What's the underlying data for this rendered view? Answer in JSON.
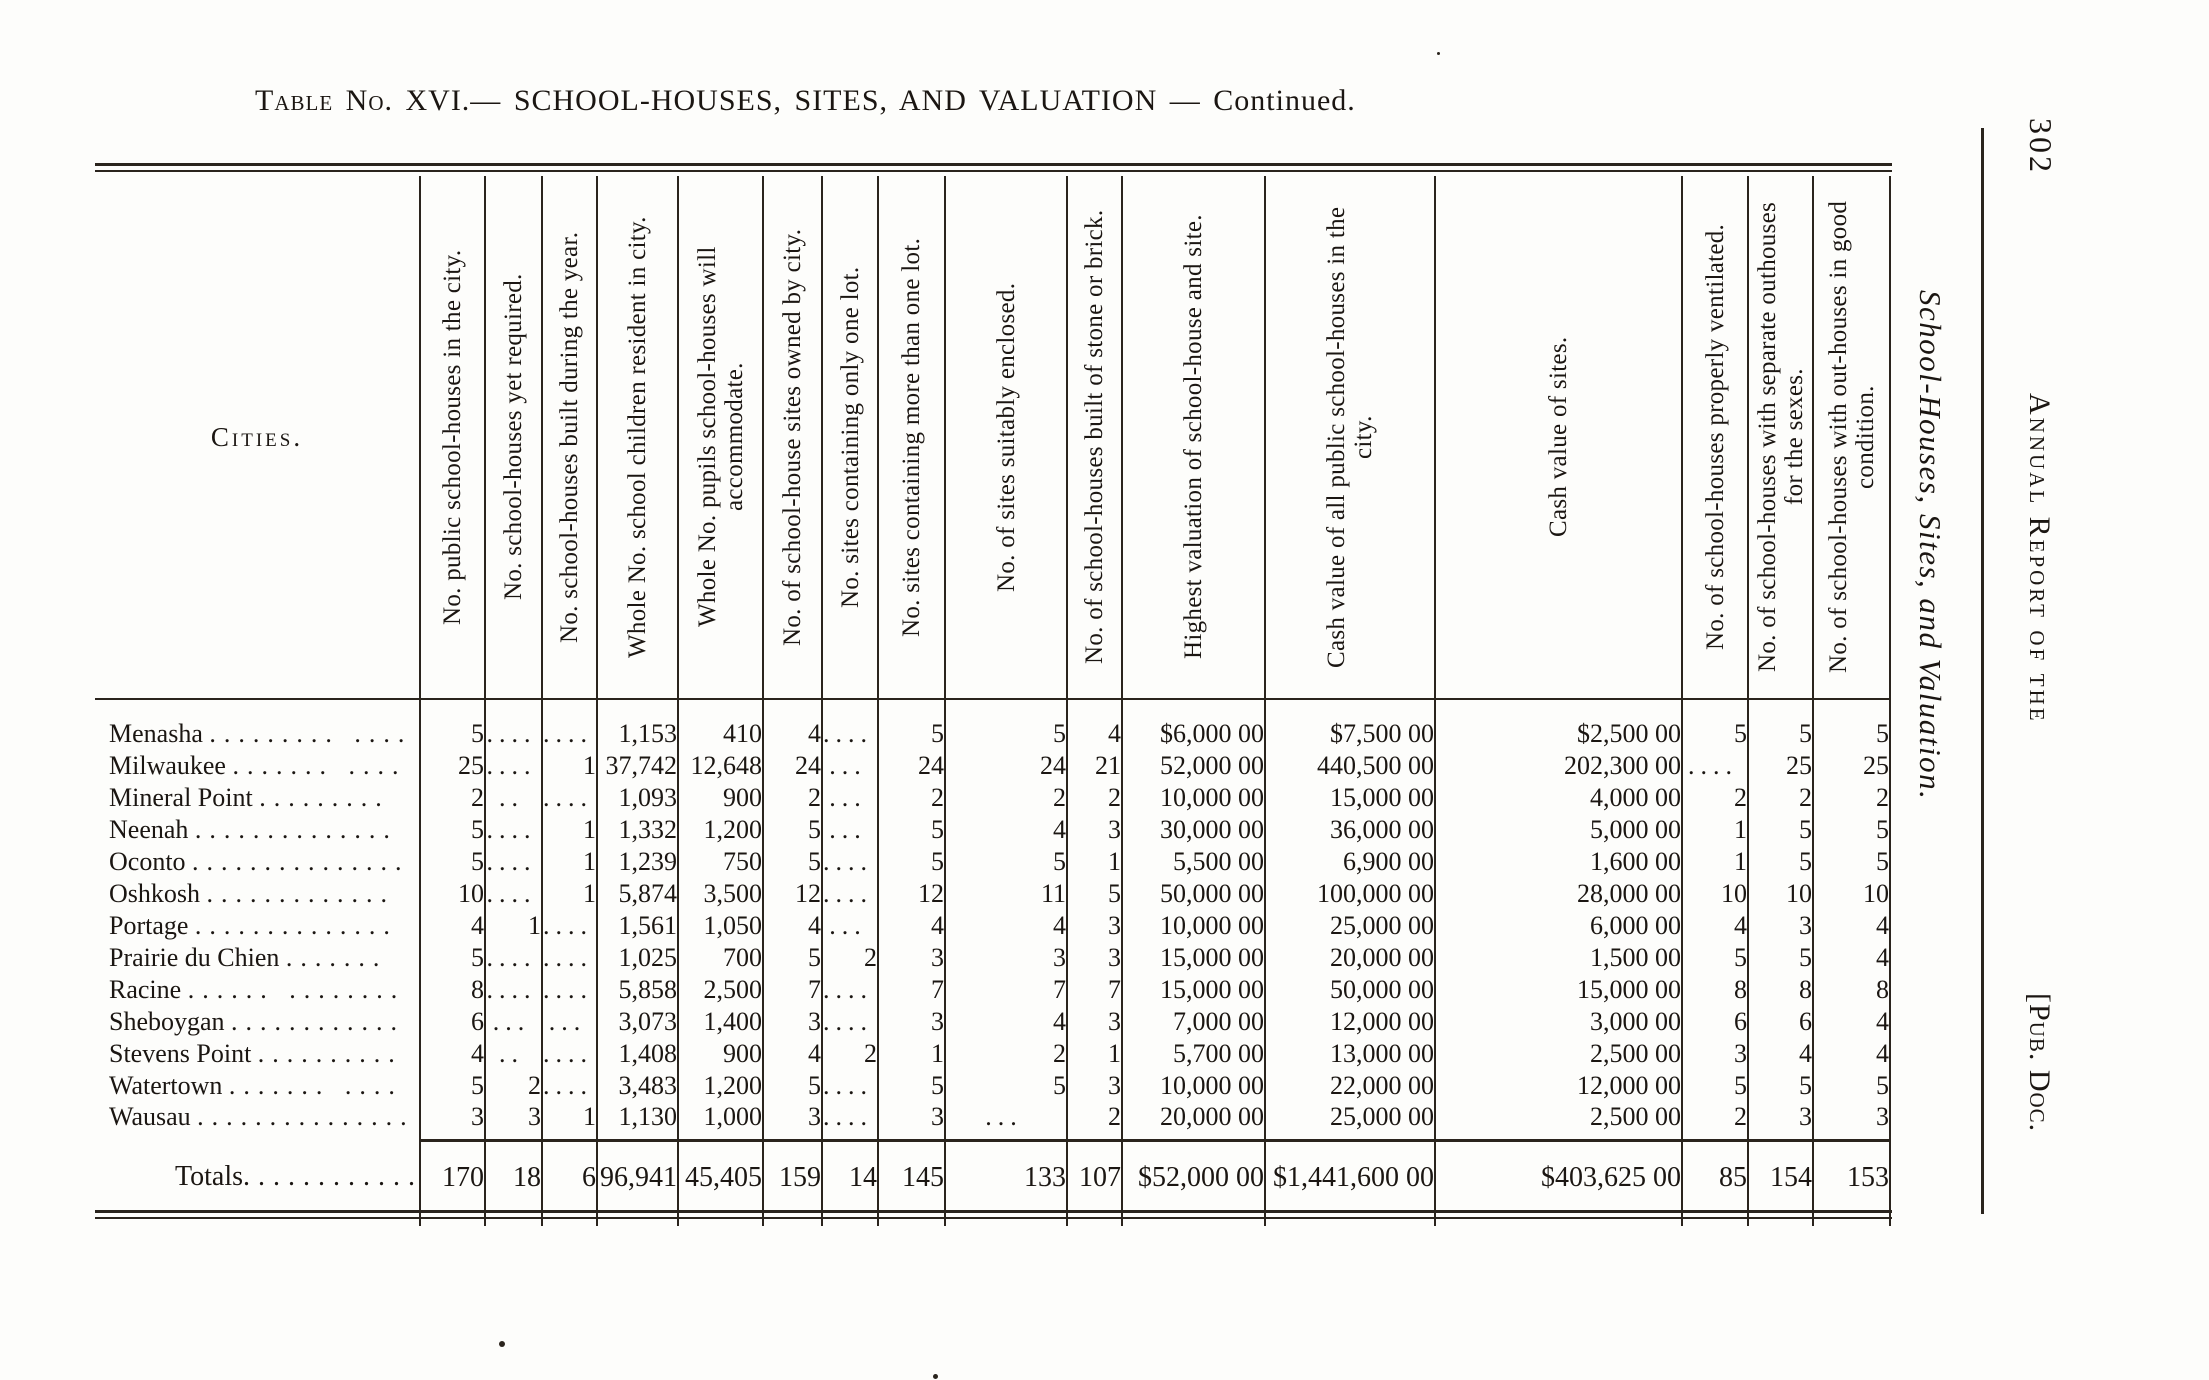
{
  "title": {
    "part1": "Table No. XVI.—",
    "part2": " SCHOOL-HOUSES, SITES, AND VALUATION ",
    "part3": "— Continued."
  },
  "margin": {
    "page_number": "302",
    "running_head": "Annual Report of the",
    "side_title": "School-Houses, Sites, and Valuation.",
    "pub_doc": "[Pub. Doc."
  },
  "colors": {
    "paper": "#fdfdfb",
    "ink": "#1b1612"
  },
  "table": {
    "cities_header": "Cities.",
    "columns": [
      "No. public school-houses in the city.",
      "No. school-houses yet required.",
      "No. school-houses built during the year.",
      "Whole No. school children resident in city.",
      "Whole No. pupils school-houses will accommodate.",
      "No. of school-house sites owned by city.",
      "No. sites containing only one lot.",
      "No. sites containing more than one lot.",
      "No. of sites suitably enclosed.",
      "No. of school-houses built of stone or brick.",
      "Highest valuation of school-house and site.",
      "Cash value of all public school-houses in the city.",
      "Cash value of sites.",
      "No. of school-houses properly ventilated.",
      "No. of school-houses with separate outhouses for the sexes.",
      "No. of school-houses with out-houses in good condition."
    ],
    "rows": [
      {
        "city": "Menasha",
        "dots": ".........  ....",
        "values": [
          "5",
          "....",
          "....",
          "1,153",
          "410",
          "4",
          "....",
          "5",
          "5",
          "4",
          "$6,000 00",
          "$7,500 00",
          "$2,500 00",
          "5",
          "5",
          "5"
        ]
      },
      {
        "city": "Milwaukee",
        "dots": ".......  ....",
        "values": [
          "25",
          "....",
          "1",
          "37,742",
          "12,648",
          "24",
          "...",
          "24",
          "24",
          "21",
          "52,000 00",
          "440,500 00",
          "202,300 00",
          "....",
          "25",
          "25"
        ]
      },
      {
        "city": "Mineral Point",
        "dots": ".........",
        "values": [
          "2",
          "..",
          "....",
          "1,093",
          "900",
          "2",
          "...",
          "2",
          "2",
          "2",
          "10,000 00",
          "15,000 00",
          "4,000 00",
          "2",
          "2",
          "2"
        ]
      },
      {
        "city": "Neenah",
        "dots": "..............",
        "values": [
          "5",
          "....",
          "1",
          "1,332",
          "1,200",
          "5",
          "...",
          "5",
          "4",
          "3",
          "30,000 00",
          "36,000 00",
          "5,000 00",
          "1",
          "5",
          "5"
        ]
      },
      {
        "city": "Oconto",
        "dots": "...............",
        "values": [
          "5",
          "....",
          "1",
          "1,239",
          "750",
          "5",
          "....",
          "5",
          "5",
          "1",
          "5,500 00",
          "6,900 00",
          "1,600 00",
          "1",
          "5",
          "5"
        ]
      },
      {
        "city": "Oshkosh",
        "dots": ".............",
        "values": [
          "10",
          "....",
          "1",
          "5,874",
          "3,500",
          "12",
          "....",
          "12",
          "11",
          "5",
          "50,000 00",
          "100,000 00",
          "28,000 00",
          "10",
          "10",
          "10"
        ]
      },
      {
        "city": "Portage",
        "dots": "..............",
        "values": [
          "4",
          "1",
          "....",
          "1,561",
          "1,050",
          "4",
          "...",
          "4",
          "4",
          "3",
          "10,000 00",
          "25,000 00",
          "6,000 00",
          "4",
          "3",
          "4"
        ]
      },
      {
        "city": "Prairie du Chien",
        "dots": ".......",
        "values": [
          "5",
          "....",
          "....",
          "1,025",
          "700",
          "5",
          "2",
          "3",
          "3",
          "3",
          "15,000 00",
          "20,000 00",
          "1,500 00",
          "5",
          "5",
          "4"
        ]
      },
      {
        "city": "Racine",
        "dots": "......  ........",
        "values": [
          "8",
          "....",
          "....",
          "5,858",
          "2,500",
          "7",
          "....",
          "7",
          "7",
          "7",
          "15,000 00",
          "50,000 00",
          "15,000 00",
          "8",
          "8",
          "8"
        ]
      },
      {
        "city": "Sheboygan",
        "dots": "............",
        "values": [
          "6",
          "...",
          "...",
          "3,073",
          "1,400",
          "3",
          "....",
          "3",
          "4",
          "3",
          "7,000 00",
          "12,000 00",
          "3,000 00",
          "6",
          "6",
          "4"
        ]
      },
      {
        "city": "Stevens Point",
        "dots": "..........",
        "values": [
          "4",
          "..",
          "....",
          "1,408",
          "900",
          "4",
          "2",
          "1",
          "2",
          "1",
          "5,700 00",
          "13,000 00",
          "2,500 00",
          "3",
          "4",
          "4"
        ]
      },
      {
        "city": "Watertown",
        "dots": ".......  ....",
        "values": [
          "5",
          "2",
          "....",
          "3,483",
          "1,200",
          "5",
          "....",
          "5",
          "5",
          "3",
          "10,000 00",
          "22,000 00",
          "12,000 00",
          "5",
          "5",
          "5"
        ]
      },
      {
        "city": "Wausau",
        "dots": "...............",
        "values": [
          "3",
          "3",
          "1",
          "1,130",
          "1,000",
          "3",
          "....",
          "3",
          "...",
          "2",
          "20,000 00",
          "25,000 00",
          "2,500 00",
          "2",
          "3",
          "3"
        ]
      }
    ],
    "totals": {
      "label": "Totals",
      "dots": "............",
      "values": [
        "170",
        "18",
        "6",
        "96,941",
        "45,405",
        "159",
        "14",
        "145",
        "133",
        "107",
        "$52,000 00",
        "$1,441,600 00",
        "$403,625 00",
        "85",
        "154",
        "153"
      ]
    }
  }
}
